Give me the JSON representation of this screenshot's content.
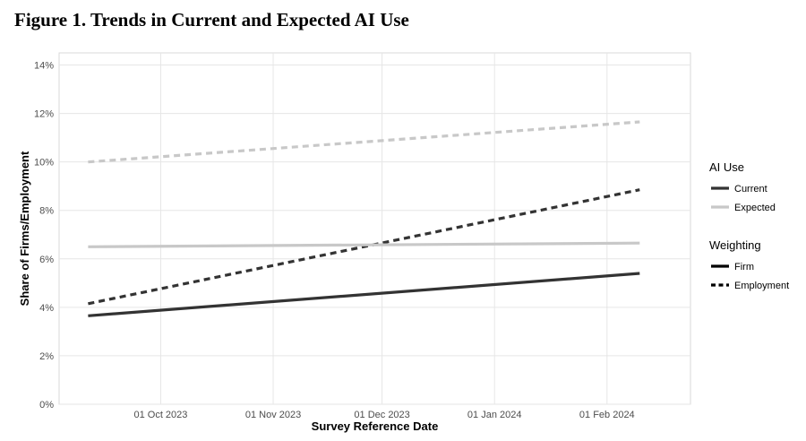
{
  "figure_title": "Figure 1. Trends in Current and Expected AI Use",
  "chart_data": {
    "type": "line",
    "title": "Figure 1. Trends in Current and Expected AI Use",
    "xlabel": "Survey Reference Date",
    "ylabel": "Share of Firms/Employment",
    "x_type": "date",
    "xlim": [
      "2023-09-03",
      "2024-02-24"
    ],
    "ylim": [
      0,
      14.5
    ],
    "x_ticks": [
      {
        "value": "2023-10-01",
        "label": "01 Oct 2023"
      },
      {
        "value": "2023-11-01",
        "label": "01 Nov 2023"
      },
      {
        "value": "2023-12-01",
        "label": "01 Dec 2023"
      },
      {
        "value": "2024-01-01",
        "label": "01 Jan 2024"
      },
      {
        "value": "2024-02-01",
        "label": "01 Feb 2024"
      }
    ],
    "y_ticks": [
      {
        "value": 0,
        "label": "0%"
      },
      {
        "value": 2,
        "label": "2%"
      },
      {
        "value": 4,
        "label": "4%"
      },
      {
        "value": 6,
        "label": "6%"
      },
      {
        "value": 8,
        "label": "8%"
      },
      {
        "value": 10,
        "label": "10%"
      },
      {
        "value": 12,
        "label": "12%"
      },
      {
        "value": 14,
        "label": "14%"
      }
    ],
    "grid": true,
    "legend_position": "right",
    "series": [
      {
        "ai_use": "Current",
        "weighting": "Firm",
        "color": "#333333",
        "dashed": false,
        "x": [
          "2023-09-11",
          "2024-02-10"
        ],
        "y": [
          3.65,
          5.4
        ]
      },
      {
        "ai_use": "Current",
        "weighting": "Employment",
        "color": "#333333",
        "dashed": true,
        "x": [
          "2023-09-11",
          "2024-02-10"
        ],
        "y": [
          4.15,
          8.85
        ]
      },
      {
        "ai_use": "Expected",
        "weighting": "Firm",
        "color": "#c8c8c8",
        "dashed": false,
        "x": [
          "2023-09-11",
          "2024-02-10"
        ],
        "y": [
          6.5,
          6.65
        ]
      },
      {
        "ai_use": "Expected",
        "weighting": "Employment",
        "color": "#c8c8c8",
        "dashed": true,
        "x": [
          "2023-09-11",
          "2024-02-10"
        ],
        "y": [
          10.0,
          11.65
        ]
      }
    ],
    "legend": {
      "ai_use": {
        "title": "AI Use",
        "items": [
          {
            "label": "Current",
            "color": "#333333"
          },
          {
            "label": "Expected",
            "color": "#c8c8c8"
          }
        ]
      },
      "weighting": {
        "title": "Weighting",
        "items": [
          {
            "label": "Firm",
            "dashed": false
          },
          {
            "label": "Employment",
            "dashed": true
          }
        ]
      }
    }
  }
}
